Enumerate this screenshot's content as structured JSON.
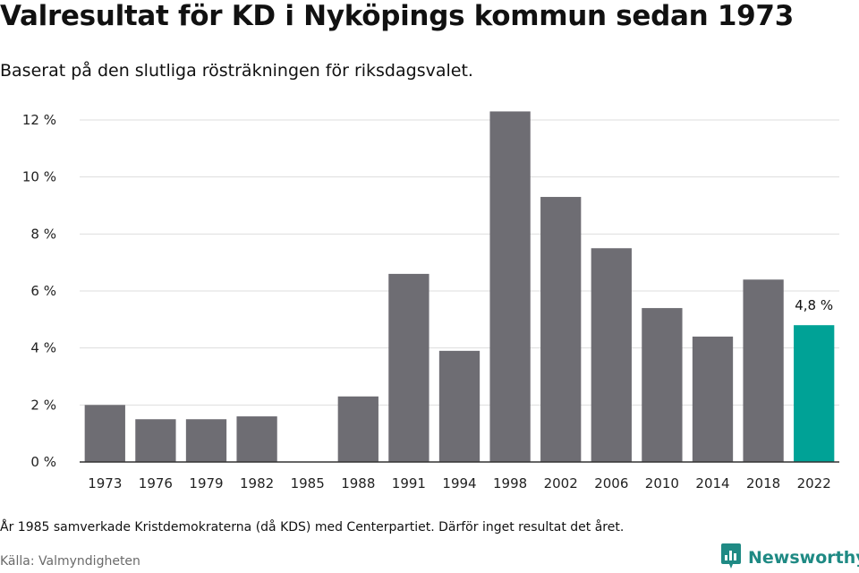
{
  "title": "Valresultat för KD i Nyköpings kommun sedan 1973",
  "subtitle": "Baserat på den slutliga rösträkningen för riksdagsvalet.",
  "note": "År 1985 samverkade Kristdemokraterna (då KDS) med Centerpartiet. Därför inget resultat det året.",
  "source": "Källa: Valmyndigheten",
  "brand": {
    "name": "Newsworthy",
    "icon": "newsworthy-logo-icon",
    "color": "#1f8a84"
  },
  "colors": {
    "bar": "#6e6d73",
    "highlight": "#00a296",
    "grid": "#dddddd",
    "axis": "#333333"
  },
  "chart_data": {
    "type": "bar",
    "categories": [
      "1973",
      "1976",
      "1979",
      "1982",
      "1985",
      "1988",
      "1991",
      "1994",
      "1998",
      "2002",
      "2006",
      "2010",
      "2014",
      "2018",
      "2022"
    ],
    "values": [
      2.0,
      1.5,
      1.5,
      1.6,
      null,
      2.3,
      6.6,
      3.9,
      12.3,
      9.3,
      7.5,
      5.4,
      4.4,
      6.4,
      4.8
    ],
    "highlight": "2022",
    "data_labels": [
      {
        "category": "2022",
        "text": "4,8 %"
      }
    ],
    "ylim": [
      0,
      12
    ],
    "yticks": [
      0,
      2,
      4,
      6,
      8,
      10,
      12
    ],
    "ytick_labels": [
      "0 %",
      "2 %",
      "4 %",
      "6 %",
      "8 %",
      "10 %",
      "12 %"
    ],
    "grid": true,
    "legend": "none",
    "xlabel": "",
    "ylabel": ""
  }
}
